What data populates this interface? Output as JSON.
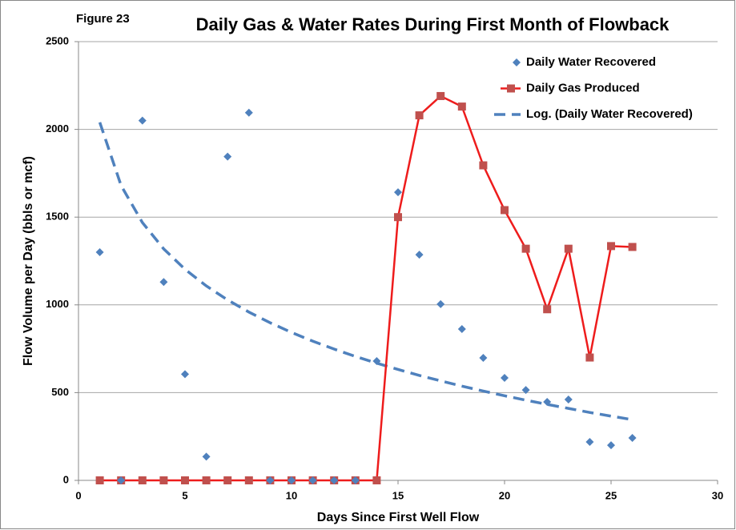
{
  "chart_data": {
    "type": "scatter",
    "figure_label": "Figure 23",
    "title": "Daily Gas & Water Rates During First Month of Flowback",
    "x_label": "Days Since First Well Flow",
    "y_label": "Flow Volume per Day (bbls or mcf)",
    "xlim": [
      0,
      30
    ],
    "xticks": [
      0,
      5,
      10,
      15,
      20,
      25,
      30
    ],
    "ylim": [
      0,
      2500
    ],
    "yticks": [
      0,
      500,
      1000,
      1500,
      2000,
      2500
    ],
    "grid": true,
    "legend": "upper right",
    "x": [
      1,
      2,
      3,
      4,
      5,
      6,
      7,
      8,
      9,
      10,
      11,
      12,
      13,
      14,
      15,
      16,
      17,
      18,
      19,
      20,
      21,
      22,
      23,
      24,
      25,
      26
    ],
    "series": [
      {
        "name": "Daily Water Recovered",
        "type": "scatter",
        "color": "#4f81bd",
        "values": [
          1300,
          0,
          2050,
          1130,
          605,
          135,
          1845,
          2095,
          0,
          0,
          0,
          0,
          0,
          680,
          1642,
          1286,
          1004,
          862,
          698,
          584,
          515,
          447,
          461,
          219,
          200,
          242
        ]
      },
      {
        "name": "Daily Gas Produced",
        "type": "line",
        "color": "#c0504d",
        "line_color": "#ee1c1c",
        "values": [
          0,
          0,
          0,
          0,
          0,
          0,
          0,
          0,
          0,
          0,
          0,
          0,
          0,
          0,
          1500,
          2080,
          2190,
          2130,
          1795,
          1540,
          1320,
          975,
          1320,
          700,
          1335,
          1330
        ]
      },
      {
        "name": "Log. (Daily Water Recovered)",
        "type": "trendline",
        "color": "#4f81bd",
        "values": [
          2040,
          1680,
          1469,
          1319,
          1203,
          1108,
          1028,
          959,
          898,
          843,
          793,
          748,
          706,
          668,
          632,
          598,
          567,
          537,
          509,
          482,
          457,
          433,
          410,
          387,
          366,
          346
        ]
      }
    ]
  }
}
